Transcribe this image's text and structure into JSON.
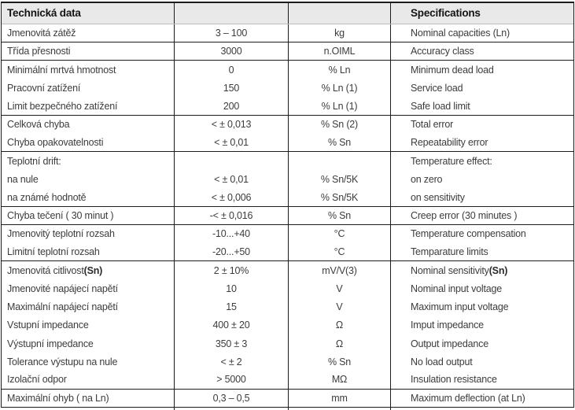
{
  "colors": {
    "header_bg": "#e9e9e9",
    "border": "#1c1c1c",
    "text": "#3c3c3c"
  },
  "table": {
    "header": {
      "left_title": "Technická data",
      "right_title": "Specifications"
    },
    "columns": [
      "czech_label",
      "value",
      "unit",
      "english_label"
    ],
    "rows": [
      {
        "czech": "Jmenovitá zátěž",
        "value": "3 – 100",
        "unit": "kg",
        "english": "Nominal capacities (Ln)",
        "section_end": true
      },
      {
        "czech": "Třída přesnosti",
        "value": "3000",
        "unit": "n.OIML",
        "english": "Accuracy class",
        "section_end": true
      },
      {
        "czech": "Minimální mrtvá hmotnost",
        "value": "0",
        "unit": "% Ln",
        "english": "Minimum dead load",
        "section_end": false
      },
      {
        "czech": "Pracovní zatížení",
        "value": "150",
        "unit": "% Ln (1)",
        "english": "Service load",
        "section_end": false
      },
      {
        "czech": "Limit bezpečného zatížení",
        "value": "200",
        "unit": "% Ln (1)",
        "english": "Safe load limit",
        "section_end": true
      },
      {
        "czech": "Celková chyba",
        "value": "< ± 0,013",
        "unit": "% Sn (2)",
        "english": "Total error",
        "section_end": false
      },
      {
        "czech": "Chyba opakovatelnosti",
        "value": "< ± 0,01",
        "unit": "% Sn",
        "english": "Repeatability error",
        "section_end": true
      },
      {
        "czech": "Teplotní drift:",
        "value": "",
        "unit": "",
        "english": "Temperature effect:",
        "section_end": false
      },
      {
        "czech": "na nule",
        "value": "< ± 0,01",
        "unit": "% Sn/5K",
        "english": "on zero",
        "section_end": false
      },
      {
        "czech": "na známé hodnotě",
        "value": "< ± 0,006",
        "unit": "% Sn/5K",
        "english": "on sensitivity",
        "section_end": true
      },
      {
        "czech": "Chyba tečení ( 30 minut )",
        "value": "-< ± 0,016",
        "unit": "% Sn",
        "english": "Creep error (30 minutes )",
        "section_end": true
      },
      {
        "czech": "Jmenovitý teplotní rozsah",
        "value": "-10...+40",
        "unit": "°C",
        "english": "Temperature compensation",
        "section_end": false
      },
      {
        "czech": "Limitní teplotní rozsah",
        "value": "-20...+50",
        "unit": "°C",
        "english": "Temparature limits",
        "section_end": true
      },
      {
        "czech": "Jmenovitá citlivost ",
        "czech_bold": "(Sn)",
        "value": "2 ± 10%",
        "unit": "mV/V(3)",
        "english": "Nominal sensitivity ",
        "english_bold": "(Sn)",
        "section_end": false
      },
      {
        "czech": "Jmenovité napájecí napětí",
        "value": "10",
        "unit": "V",
        "english": "Nominal input voltage",
        "section_end": false
      },
      {
        "czech": "Maximální napájecí napětí",
        "value": "15",
        "unit": "V",
        "english": "Maximum input voltage",
        "section_end": false
      },
      {
        "czech": "Vstupní impedance",
        "value": "400 ± 20",
        "unit": "Ω",
        "english": "Imput impedance",
        "section_end": false
      },
      {
        "czech": "Výstupní impedance",
        "value": "350 ± 3",
        "unit": "Ω",
        "english": "Output impedance",
        "section_end": false
      },
      {
        "czech": "Tolerance výstupu na nule",
        "value": "< ± 2",
        "unit": "% Sn",
        "english": "No load output",
        "section_end": false
      },
      {
        "czech": "Izolační odpor",
        "value": "> 5000",
        "unit": "MΩ",
        "english": "Insulation resistance",
        "section_end": true
      },
      {
        "czech": "Maximální ohyb ( na Ln)",
        "value": "0,3 – 0,5",
        "unit": "mm",
        "english": "Maximum deflection (at Ln)",
        "section_end": true
      }
    ]
  }
}
